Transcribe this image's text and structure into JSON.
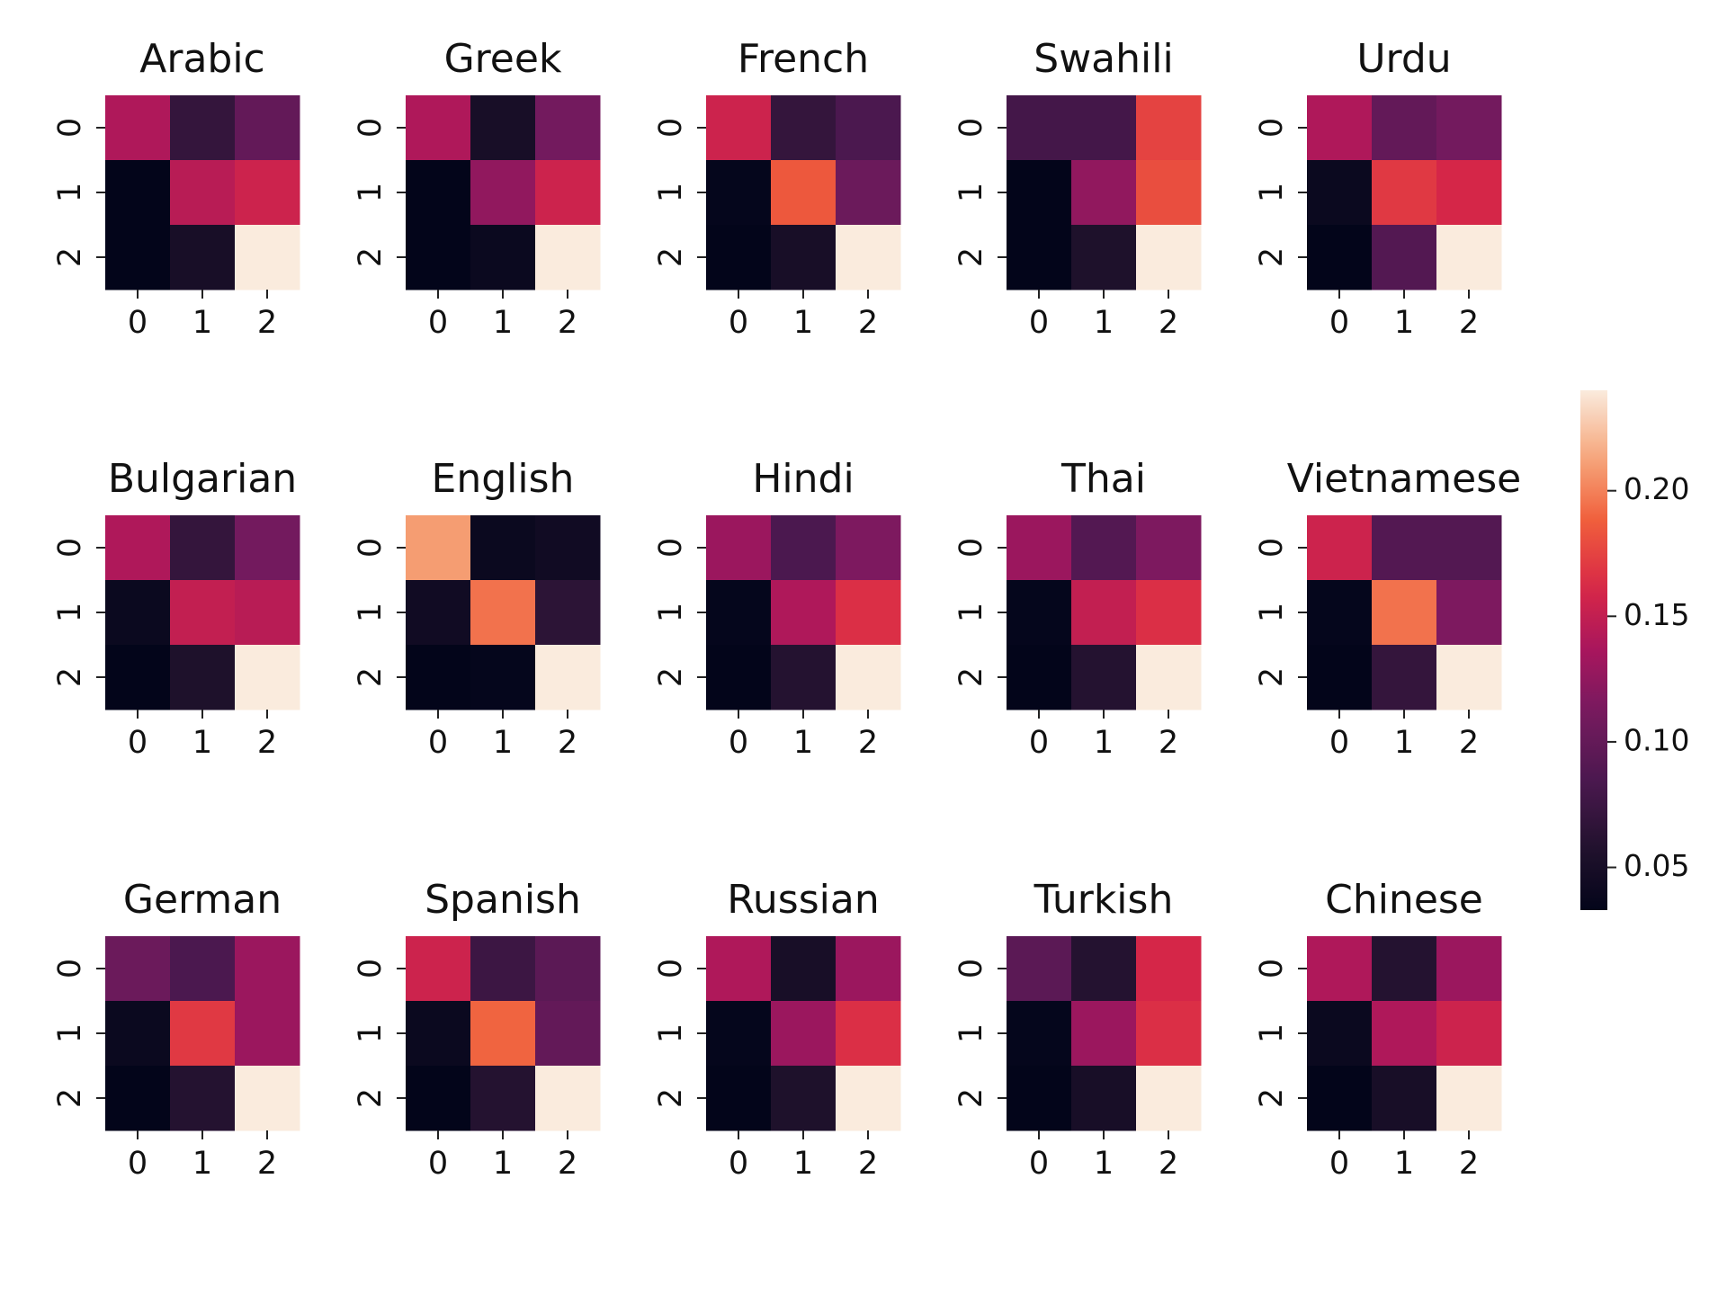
{
  "chart_data": [
    {
      "type": "heatmap",
      "title": "Arabic",
      "x_ticks": [
        "0",
        "1",
        "2"
      ],
      "y_ticks": [
        "0",
        "1",
        "2"
      ],
      "values": [
        [
          0.14,
          0.07,
          0.1
        ],
        [
          0.03,
          0.145,
          0.155
        ],
        [
          0.03,
          0.05,
          0.24
        ]
      ]
    },
    {
      "type": "heatmap",
      "title": "Greek",
      "x_ticks": [
        "0",
        "1",
        "2"
      ],
      "y_ticks": [
        "0",
        "1",
        "2"
      ],
      "values": [
        [
          0.14,
          0.05,
          0.11
        ],
        [
          0.03,
          0.125,
          0.155
        ],
        [
          0.03,
          0.04,
          0.24
        ]
      ]
    },
    {
      "type": "heatmap",
      "title": "French",
      "x_ticks": [
        "0",
        "1",
        "2"
      ],
      "y_ticks": [
        "0",
        "1",
        "2"
      ],
      "values": [
        [
          0.155,
          0.07,
          0.085
        ],
        [
          0.035,
          0.185,
          0.105
        ],
        [
          0.03,
          0.05,
          0.24
        ]
      ]
    },
    {
      "type": "heatmap",
      "title": "Swahili",
      "x_ticks": [
        "0",
        "1",
        "2"
      ],
      "y_ticks": [
        "0",
        "1",
        "2"
      ],
      "values": [
        [
          0.08,
          0.08,
          0.175
        ],
        [
          0.03,
          0.125,
          0.18
        ],
        [
          0.03,
          0.055,
          0.24
        ]
      ]
    },
    {
      "type": "heatmap",
      "title": "Urdu",
      "x_ticks": [
        "0",
        "1",
        "2"
      ],
      "y_ticks": [
        "0",
        "1",
        "2"
      ],
      "values": [
        [
          0.14,
          0.1,
          0.11
        ],
        [
          0.04,
          0.17,
          0.16
        ],
        [
          0.03,
          0.09,
          0.24
        ]
      ]
    },
    {
      "type": "heatmap",
      "title": "Bulgarian",
      "x_ticks": [
        "0",
        "1",
        "2"
      ],
      "y_ticks": [
        "0",
        "1",
        "2"
      ],
      "values": [
        [
          0.14,
          0.07,
          0.11
        ],
        [
          0.04,
          0.15,
          0.145
        ],
        [
          0.03,
          0.055,
          0.24
        ]
      ]
    },
    {
      "type": "heatmap",
      "title": "English",
      "x_ticks": [
        "0",
        "1",
        "2"
      ],
      "y_ticks": [
        "0",
        "1",
        "2"
      ],
      "values": [
        [
          0.21,
          0.04,
          0.045
        ],
        [
          0.045,
          0.195,
          0.065
        ],
        [
          0.03,
          0.035,
          0.24
        ]
      ]
    },
    {
      "type": "heatmap",
      "title": "Hindi",
      "x_ticks": [
        "0",
        "1",
        "2"
      ],
      "y_ticks": [
        "0",
        "1",
        "2"
      ],
      "values": [
        [
          0.13,
          0.085,
          0.115
        ],
        [
          0.035,
          0.14,
          0.165
        ],
        [
          0.03,
          0.06,
          0.24
        ]
      ]
    },
    {
      "type": "heatmap",
      "title": "Thai",
      "x_ticks": [
        "0",
        "1",
        "2"
      ],
      "y_ticks": [
        "0",
        "1",
        "2"
      ],
      "values": [
        [
          0.13,
          0.09,
          0.115
        ],
        [
          0.035,
          0.15,
          0.165
        ],
        [
          0.03,
          0.06,
          0.24
        ]
      ]
    },
    {
      "type": "heatmap",
      "title": "Vietnamese",
      "x_ticks": [
        "0",
        "1",
        "2"
      ],
      "y_ticks": [
        "0",
        "1",
        "2"
      ],
      "values": [
        [
          0.155,
          0.09,
          0.09
        ],
        [
          0.035,
          0.195,
          0.115
        ],
        [
          0.03,
          0.07,
          0.24
        ]
      ]
    },
    {
      "type": "heatmap",
      "title": "German",
      "x_ticks": [
        "0",
        "1",
        "2"
      ],
      "y_ticks": [
        "0",
        "1",
        "2"
      ],
      "values": [
        [
          0.105,
          0.085,
          0.13
        ],
        [
          0.04,
          0.17,
          0.13
        ],
        [
          0.03,
          0.06,
          0.24
        ]
      ]
    },
    {
      "type": "heatmap",
      "title": "Spanish",
      "x_ticks": [
        "0",
        "1",
        "2"
      ],
      "y_ticks": [
        "0",
        "1",
        "2"
      ],
      "values": [
        [
          0.155,
          0.075,
          0.095
        ],
        [
          0.04,
          0.19,
          0.1
        ],
        [
          0.03,
          0.06,
          0.24
        ]
      ]
    },
    {
      "type": "heatmap",
      "title": "Russian",
      "x_ticks": [
        "0",
        "1",
        "2"
      ],
      "y_ticks": [
        "0",
        "1",
        "2"
      ],
      "values": [
        [
          0.14,
          0.05,
          0.13
        ],
        [
          0.035,
          0.13,
          0.165
        ],
        [
          0.03,
          0.055,
          0.24
        ]
      ]
    },
    {
      "type": "heatmap",
      "title": "Turkish",
      "x_ticks": [
        "0",
        "1",
        "2"
      ],
      "y_ticks": [
        "0",
        "1",
        "2"
      ],
      "values": [
        [
          0.095,
          0.06,
          0.16
        ],
        [
          0.035,
          0.13,
          0.165
        ],
        [
          0.03,
          0.05,
          0.24
        ]
      ]
    },
    {
      "type": "heatmap",
      "title": "Chinese",
      "x_ticks": [
        "0",
        "1",
        "2"
      ],
      "y_ticks": [
        "0",
        "1",
        "2"
      ],
      "values": [
        [
          0.14,
          0.06,
          0.13
        ],
        [
          0.04,
          0.14,
          0.155
        ],
        [
          0.03,
          0.05,
          0.24
        ]
      ]
    }
  ],
  "colorbar": {
    "range": [
      0.033,
      0.24
    ],
    "ticks": [
      {
        "value": 0.05,
        "label": "0.05"
      },
      {
        "value": 0.1,
        "label": "0.10"
      },
      {
        "value": 0.15,
        "label": "0.15"
      },
      {
        "value": 0.2,
        "label": "0.20"
      }
    ]
  }
}
